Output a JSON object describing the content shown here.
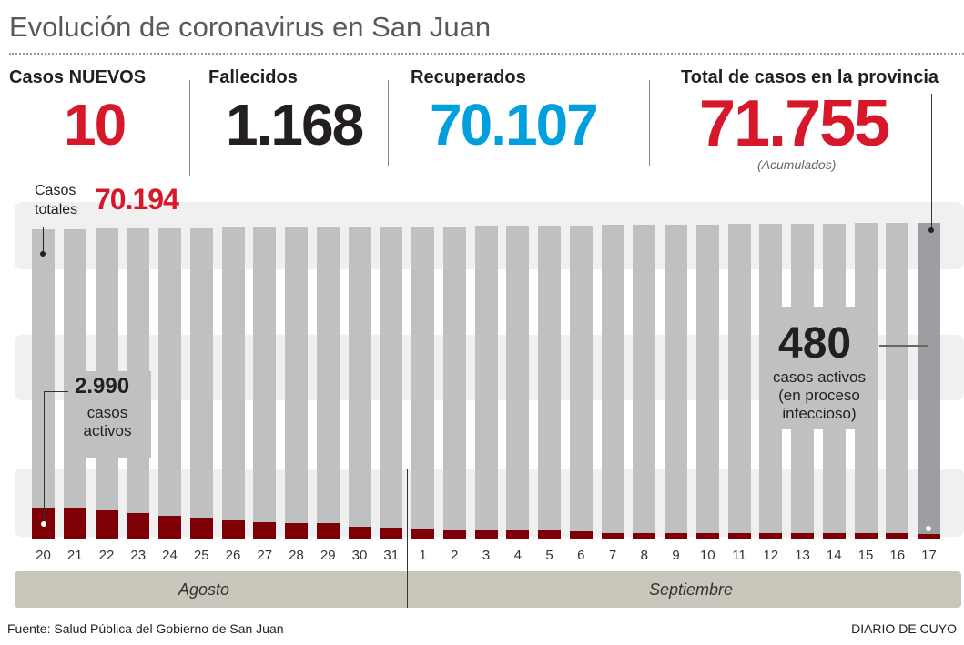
{
  "title": "Evolución de coronavirus en San Juan",
  "stats": {
    "nuevos_label": "Casos NUEVOS",
    "nuevos_value": "10",
    "fallecidos_label": "Fallecidos",
    "fallecidos_value": "1.168",
    "recuperados_label": "Recuperados",
    "recuperados_value": "70.107",
    "total_label": "Total de casos en la provincia",
    "total_value": "71.755",
    "total_note": "(Acumulados)"
  },
  "colors": {
    "red": "#d7182a",
    "blue": "#00a0df",
    "bar": "#bfc0c2",
    "bar_last": "#9d9ea1",
    "active": "#7e0006"
  },
  "chart_data": {
    "type": "bar",
    "title": "Evolución de coronavirus en San Juan",
    "categories": [
      "20",
      "21",
      "22",
      "23",
      "24",
      "25",
      "26",
      "27",
      "28",
      "29",
      "30",
      "31",
      "1",
      "2",
      "3",
      "4",
      "5",
      "6",
      "7",
      "8",
      "9",
      "10",
      "11",
      "12",
      "13",
      "14",
      "15",
      "16",
      "17"
    ],
    "months": [
      "Agosto",
      "Septiembre"
    ],
    "series": [
      {
        "name": "Casos totales",
        "values": [
          70194,
          70250,
          70306,
          70362,
          70418,
          70473,
          70529,
          70585,
          70641,
          70697,
          70752,
          70808,
          70864,
          70920,
          70976,
          71032,
          71087,
          71143,
          71199,
          71255,
          71311,
          71366,
          71422,
          71478,
          71534,
          71590,
          71645,
          71700,
          71755
        ]
      },
      {
        "name": "Casos activos",
        "values": [
          2990,
          2990,
          2730,
          2460,
          2200,
          2020,
          1760,
          1580,
          1490,
          1490,
          1140,
          1050,
          880,
          790,
          790,
          790,
          790,
          700,
          530,
          530,
          530,
          530,
          530,
          530,
          530,
          530,
          530,
          530,
          480
        ]
      }
    ],
    "annotations": {
      "start_total_label": "Casos totales",
      "start_total_value": "70.194",
      "start_active_value": "2.990",
      "start_active_label": "casos activos",
      "end_active_value": "480",
      "end_active_label1": "casos activos",
      "end_active_label2": "(en proceso",
      "end_active_label3": "infeccioso)"
    }
  },
  "footer": {
    "source": "Fuente: Salud Pública del Gobierno de San Juan",
    "brand": "DIARIO DE CUYO"
  }
}
